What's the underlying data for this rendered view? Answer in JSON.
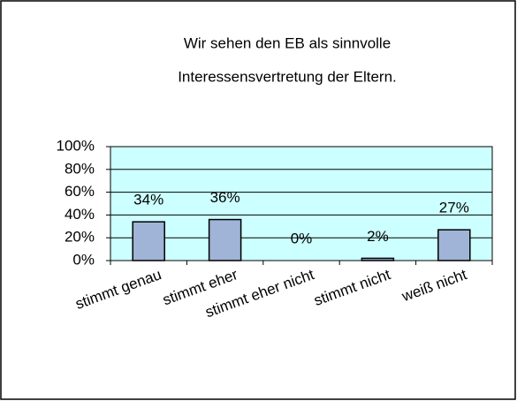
{
  "chart_data": {
    "type": "bar",
    "title": [
      "Wir sehen den EB als sinnvolle",
      "Interessensvertretung der Eltern."
    ],
    "categories": [
      "stimmt genau",
      "stimmt eher",
      "stimmt eher nicht",
      "stimmt nicht",
      "weiß nicht"
    ],
    "values": [
      34,
      36,
      0,
      2,
      27
    ],
    "value_labels": [
      "34%",
      "36%",
      "0%",
      "2%",
      "27%"
    ],
    "color": "#9fb4d6",
    "ylim": [
      0,
      100
    ],
    "yticks": [
      {
        "value": 0,
        "label": "0%"
      },
      {
        "value": 20,
        "label": "20%"
      },
      {
        "value": 40,
        "label": "40%"
      },
      {
        "value": 60,
        "label": "60%"
      },
      {
        "value": 80,
        "label": "80%"
      },
      {
        "value": 100,
        "label": "100%"
      }
    ],
    "grid": true
  }
}
